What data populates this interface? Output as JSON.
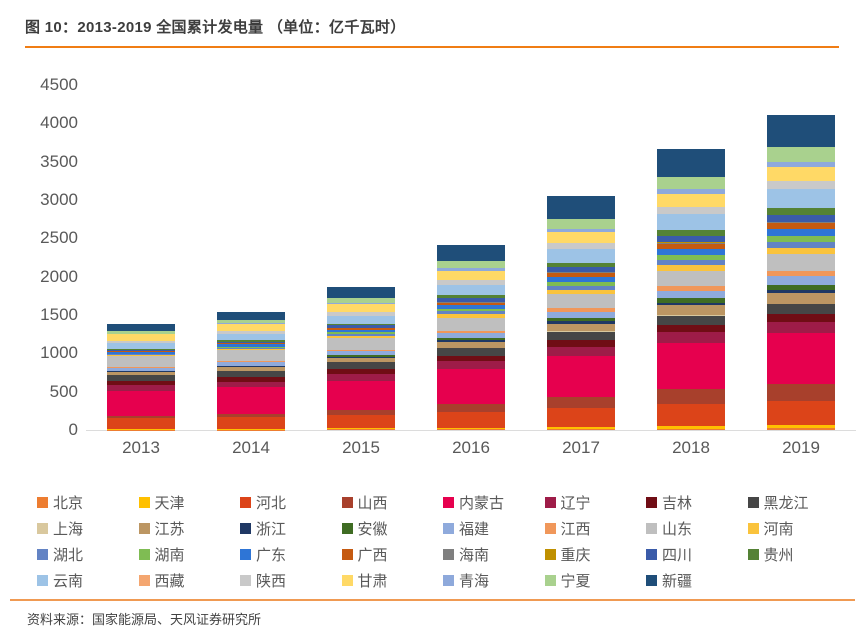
{
  "title": "图 10：2013-2019 全国累计发电量 （单位：亿千瓦时）",
  "source": "资料来源：国家能源局、天风证券研究所",
  "colors": {
    "rule_top": "#F07D14",
    "rule_bottom": "#F09A52",
    "axis_text": "#595959",
    "title_text": "#3D3D3D",
    "baseline": "#DCDCDC"
  },
  "chart_data": {
    "type": "bar",
    "stacked": true,
    "title": "2013-2019 全国累计发电量",
    "unit": "亿千瓦时",
    "xlabel": "",
    "ylabel": "",
    "grid": false,
    "legend_position": "bottom",
    "categories": [
      "2013",
      "2014",
      "2015",
      "2016",
      "2017",
      "2018",
      "2019"
    ],
    "ylim": [
      0,
      4500
    ],
    "yticks": [
      0,
      500,
      1000,
      1500,
      2000,
      2500,
      3000,
      3500,
      4000,
      4500
    ],
    "series": [
      {
        "name": "北京",
        "color": "#ED7D31",
        "values": [
          5,
          6,
          8,
          11,
          14,
          18,
          20
        ]
      },
      {
        "name": "天津",
        "color": "#FFC000",
        "values": [
          10,
          12,
          15,
          21,
          28,
          35,
          40
        ]
      },
      {
        "name": "河北",
        "color": "#DC4419",
        "values": [
          140,
          151,
          172,
          208,
          250,
          291,
          320
        ]
      },
      {
        "name": "山西",
        "color": "#A8402C",
        "values": [
          26,
          38,
          61,
          100,
          144,
          189,
          220
        ]
      },
      {
        "name": "内蒙古",
        "color": "#E6004E",
        "values": [
          330,
          350,
          389,
          455,
          531,
          607,
          660
        ]
      },
      {
        "name": "辽宁",
        "color": "#9E1C48",
        "values": [
          72,
          76,
          85,
          100,
          117,
          133,
          145
        ]
      },
      {
        "name": "吉林",
        "color": "#700D15",
        "values": [
          55,
          58,
          64,
          74,
          86,
          97,
          105
        ]
      },
      {
        "name": "黑龙江",
        "color": "#464646",
        "values": [
          80,
          83,
          89,
          99,
          111,
          122,
          130
        ]
      },
      {
        "name": "上海",
        "color": "#D9C89E",
        "values": [
          2,
          2,
          3,
          4,
          6,
          7,
          8
        ]
      },
      {
        "name": "江苏",
        "color": "#BC9663",
        "values": [
          35,
          42,
          55,
          77,
          102,
          127,
          145
        ]
      },
      {
        "name": "浙江",
        "color": "#1F3864",
        "values": [
          10,
          12,
          15,
          21,
          28,
          35,
          40
        ]
      },
      {
        "name": "安徽",
        "color": "#3F6C23",
        "values": [
          8,
          11,
          18,
          30,
          43,
          56,
          65
        ]
      },
      {
        "name": "福建",
        "color": "#8FAADC",
        "values": [
          40,
          45,
          54,
          69,
          86,
          103,
          115
        ]
      },
      {
        "name": "江西",
        "color": "#F0975A",
        "values": [
          8,
          11,
          18,
          30,
          43,
          56,
          65
        ]
      },
      {
        "name": "山东",
        "color": "#BFBFBF",
        "values": [
          140,
          145,
          154,
          169,
          186,
          203,
          215
        ]
      },
      {
        "name": "河南",
        "color": "#FAC33C",
        "values": [
          15,
          19,
          28,
          42,
          58,
          74,
          85
        ]
      },
      {
        "name": "湖北",
        "color": "#6383C4",
        "values": [
          12,
          16,
          24,
          38,
          53,
          69,
          80
        ]
      },
      {
        "name": "湖南",
        "color": "#7FBC53",
        "values": [
          10,
          14,
          23,
          37,
          53,
          69,
          80
        ]
      },
      {
        "name": "广东",
        "color": "#2E75D6",
        "values": [
          24,
          28,
          35,
          47,
          61,
          75,
          85
        ]
      },
      {
        "name": "广西",
        "color": "#C55A11",
        "values": [
          8,
          12,
          20,
          33,
          49,
          64,
          75
        ]
      },
      {
        "name": "海南",
        "color": "#7F7F7F",
        "values": [
          4,
          4,
          5,
          7,
          9,
          11,
          12
        ]
      },
      {
        "name": "重庆",
        "color": "#BF9000",
        "values": [
          3,
          3,
          4,
          6,
          7,
          9,
          10
        ]
      },
      {
        "name": "四川",
        "color": "#3A5BA9",
        "values": [
          14,
          19,
          28,
          43,
          60,
          78,
          90
        ]
      },
      {
        "name": "贵州",
        "color": "#548235",
        "values": [
          10,
          15,
          24,
          40,
          59,
          77,
          90
        ]
      },
      {
        "name": "云南",
        "color": "#9DC3E6",
        "values": [
          70,
          80,
          101,
          135,
          174,
          213,
          240
        ]
      },
      {
        "name": "西藏",
        "color": "#F4A670",
        "values": [
          2,
          2,
          3,
          4,
          6,
          7,
          8
        ]
      },
      {
        "name": "陕西",
        "color": "#C9C9C9",
        "values": [
          33,
          37,
          45,
          58,
          74,
          89,
          100
        ]
      },
      {
        "name": "甘肃",
        "color": "#FFD966",
        "values": [
          85,
          91,
          104,
          125,
          149,
          173,
          190
        ]
      },
      {
        "name": "青海",
        "color": "#8EA9DB",
        "values": [
          8,
          11,
          18,
          30,
          43,
          56,
          65
        ]
      },
      {
        "name": "宁夏",
        "color": "#A9D18E",
        "values": [
          35,
          44,
          63,
          94,
          130,
          165,
          190
        ]
      },
      {
        "name": "新疆",
        "color": "#1F4E79",
        "values": [
          90,
          110,
          149,
          215,
          291,
          367,
          420
        ]
      }
    ]
  }
}
